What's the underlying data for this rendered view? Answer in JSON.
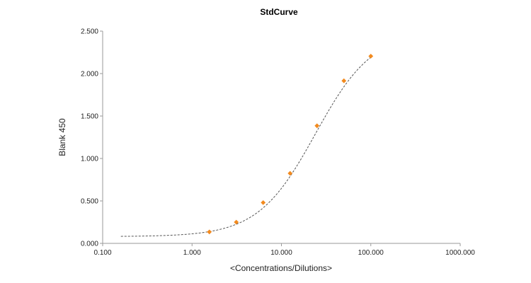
{
  "chart_data": {
    "type": "scatter",
    "title": "StdCurve",
    "xlabel": "<Concentrations/Dilutions>",
    "ylabel": "Blank 450",
    "x_scale": "log",
    "xlim": [
      0.1,
      1000
    ],
    "ylim": [
      0,
      2.5
    ],
    "x_ticks": [
      0.1,
      1,
      10,
      100,
      1000
    ],
    "x_tick_labels": [
      "0.100",
      "1.000",
      "10.000",
      "100.000",
      "1000.000"
    ],
    "y_ticks": [
      0,
      0.5,
      1,
      1.5,
      2,
      2.5
    ],
    "y_tick_labels": [
      "0.000",
      "0.500",
      "1.000",
      "1.500",
      "2.000",
      "2.500"
    ],
    "grid": false,
    "legend": "none",
    "points": {
      "x": [
        1.5625,
        3.125,
        6.25,
        12.5,
        25,
        50,
        100
      ],
      "y": [
        0.135,
        0.25,
        0.48,
        0.825,
        1.385,
        1.915,
        2.205
      ],
      "color": "#f28a1e"
    },
    "fit_curve": {
      "model": "4PL",
      "bottom": 0.08,
      "top": 2.5,
      "ec50": 24,
      "hill": 1.35,
      "x_range": [
        0.16,
        100
      ],
      "color": "#555555",
      "style": "dashed"
    }
  }
}
